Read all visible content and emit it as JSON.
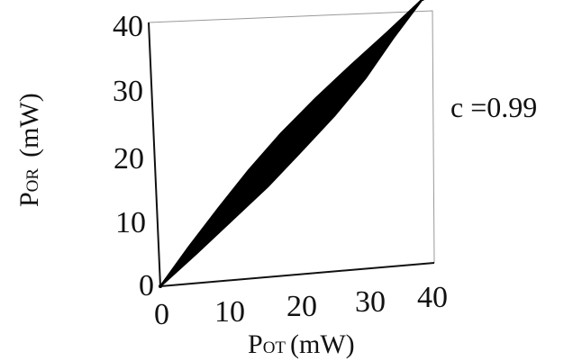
{
  "chart_data": {
    "type": "scatter",
    "title": "",
    "xlabel": {
      "main": "P",
      "sub": "OT",
      "unit": "(mW)"
    },
    "ylabel": {
      "main": "P",
      "sub": "OR",
      "unit": "(mW)"
    },
    "xlim": [
      0,
      40
    ],
    "ylim": [
      0,
      40
    ],
    "xticks": [
      "0",
      "10",
      "20",
      "30",
      "40"
    ],
    "yticks": [
      "0",
      "10",
      "20",
      "30",
      "40"
    ],
    "grid": false,
    "legend": "none",
    "annotation": "c =0.99",
    "series": [
      {
        "x": [
          0,
          5,
          10,
          15,
          20,
          25,
          30,
          35,
          40
        ],
        "y": [
          0,
          5,
          10,
          15,
          20,
          25,
          30,
          35,
          40
        ],
        "spread_upper": [
          0.2,
          1.4,
          2.3,
          3.0,
          3.2,
          2.8,
          2.0,
          1.0,
          0.2
        ],
        "spread_lower": [
          0.2,
          1.2,
          2.0,
          2.8,
          3.0,
          3.1,
          2.6,
          1.2,
          0.2
        ]
      }
    ],
    "colors": {
      "points": "#000000",
      "axes": "#111111",
      "frame": "#888888"
    }
  }
}
